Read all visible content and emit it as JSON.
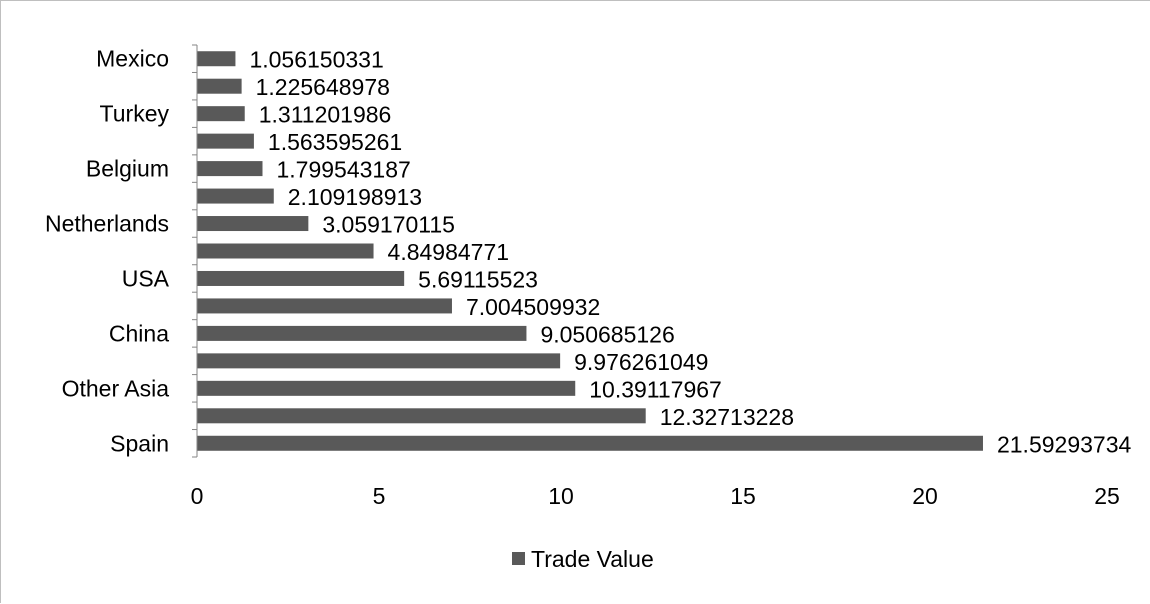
{
  "chart_data": {
    "type": "bar",
    "orientation": "horizontal",
    "categories": [
      "Spain",
      "",
      "Other Asia",
      "",
      "China",
      "",
      "USA",
      "",
      "Netherlands",
      "",
      "Belgium",
      "",
      "Turkey",
      "",
      "Mexico"
    ],
    "series": [
      {
        "name": "Trade Value",
        "values": [
          21.59293734,
          12.32713228,
          10.39117967,
          9.976261049,
          9.050685126,
          7.004509932,
          5.69115523,
          4.84984771,
          3.059170115,
          2.109198913,
          1.799543187,
          1.563595261,
          1.311201986,
          1.225648978,
          1.056150331
        ],
        "labels": [
          "21.59293734",
          "12.32713228",
          "10.39117967",
          "9.976261049",
          "9.050685126",
          "7.004509932",
          "5.69115523",
          "4.84984771",
          "3.059170115",
          "2.109198913",
          "1.799543187",
          "1.563595261",
          "1.311201986",
          "1.225648978",
          "1.056150331"
        ]
      }
    ],
    "xlim": [
      0,
      25
    ],
    "xticks": [
      "0",
      "5",
      "10",
      "15",
      "20",
      "25"
    ],
    "grid": false,
    "legend_position": "bottom",
    "colors": {
      "bar": "#595959",
      "axis": "#868686"
    }
  }
}
